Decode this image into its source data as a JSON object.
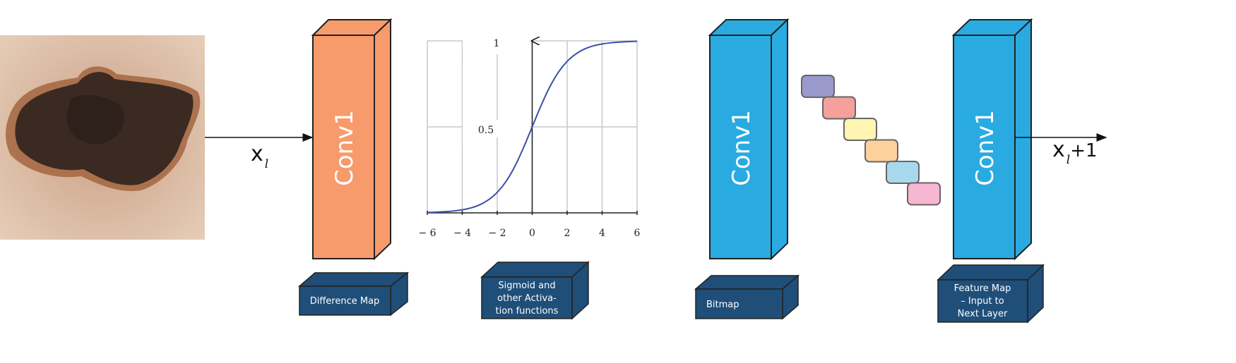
{
  "input_image": {
    "description_label": ""
  },
  "input_label": {
    "symbol": "x",
    "subscript": "l"
  },
  "output_label": {
    "symbol": "x",
    "subscript": "l",
    "suffix": "+1"
  },
  "blocks": [
    {
      "title": "Conv1",
      "color": "#f79b6c",
      "caption": [
        "Difference Map"
      ]
    },
    {
      "title": "Conv1",
      "color": "#29abe2",
      "caption": [
        "Bitmap"
      ]
    },
    {
      "title": "Conv1",
      "color": "#29abe2",
      "caption": [
        "Feature Map",
        "– Input to",
        "Next Layer"
      ]
    }
  ],
  "activation_caption": [
    "Sigmoid and",
    "other Activa-",
    "tion functions"
  ],
  "caption_color": "#1f4e79",
  "pool_boxes": [
    "#9999cc",
    "#f4a09c",
    "#fff5b1",
    "#fcd19c",
    "#a8d8ec",
    "#f7b6d2"
  ],
  "chart_data": {
    "type": "line",
    "title": "",
    "xlabel": "",
    "ylabel": "",
    "xlim": [
      -6,
      6
    ],
    "ylim": [
      0,
      1
    ],
    "x_ticks": [
      "− 6",
      "− 4",
      "− 2",
      "0",
      "2",
      "4",
      "6"
    ],
    "x_tick_values": [
      -6,
      -4,
      -2,
      0,
      2,
      4,
      6
    ],
    "y_ticks": [
      "0.5",
      "1"
    ],
    "y_tick_values": [
      0.5,
      1
    ],
    "grid": true,
    "line_color": "#3a4fa8",
    "series": [
      {
        "x": [
          -6,
          -5.5,
          -5,
          -4.5,
          -4,
          -3.5,
          -3,
          -2.5,
          -2,
          -1.5,
          -1,
          -0.5,
          0,
          0.5,
          1,
          1.5,
          2,
          2.5,
          3,
          3.5,
          4,
          4.5,
          5,
          5.5,
          6
        ],
        "y": [
          0.002,
          0.004,
          0.007,
          0.011,
          0.018,
          0.029,
          0.047,
          0.076,
          0.119,
          0.182,
          0.269,
          0.378,
          0.5,
          0.622,
          0.731,
          0.818,
          0.881,
          0.924,
          0.953,
          0.971,
          0.982,
          0.989,
          0.993,
          0.996,
          0.998
        ]
      }
    ]
  }
}
